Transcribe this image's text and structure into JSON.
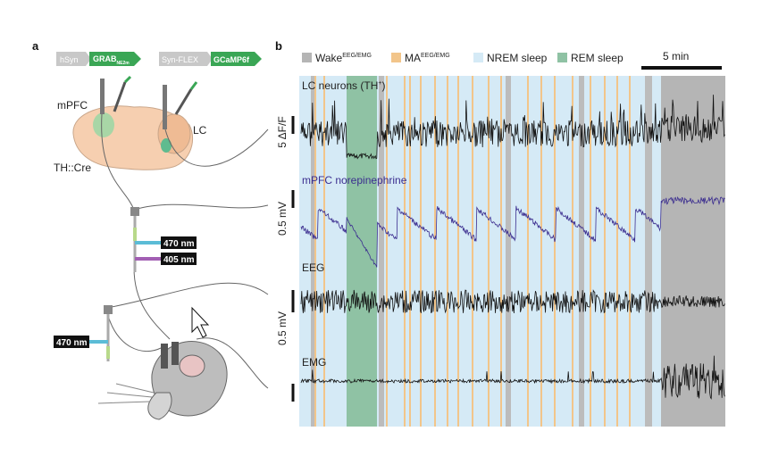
{
  "panel_a": {
    "label": "a",
    "constructs": [
      {
        "promoter": "hSyn",
        "sensor": "GRAB",
        "sensor_sub": "NE2m"
      },
      {
        "promoter": "Syn-FLEX",
        "sensor": "GCaMP6f"
      }
    ],
    "regions": [
      "mPFC",
      "LC"
    ],
    "mouse_line": "TH::Cre",
    "wavelengths": [
      "470 nm",
      "405 nm",
      "470 nm"
    ]
  },
  "panel_b": {
    "label": "b",
    "legend": [
      {
        "name": "Wake",
        "sup": "EEG/EMG"
      },
      {
        "name": "MA",
        "sup": "EEG/EMG"
      },
      {
        "name": "NREM sleep"
      },
      {
        "name": "REM sleep"
      }
    ],
    "time_scale": "5 min",
    "traces": [
      {
        "name": "LC neurons (TH",
        "sup": "+",
        "close": ")",
        "scale": "5 ΔF/F"
      },
      {
        "name": "mPFC norepinephrine",
        "scale": "0.5 mV"
      },
      {
        "name": "EEG",
        "scale": "0.5 mV"
      },
      {
        "name": "EMG"
      }
    ]
  }
}
